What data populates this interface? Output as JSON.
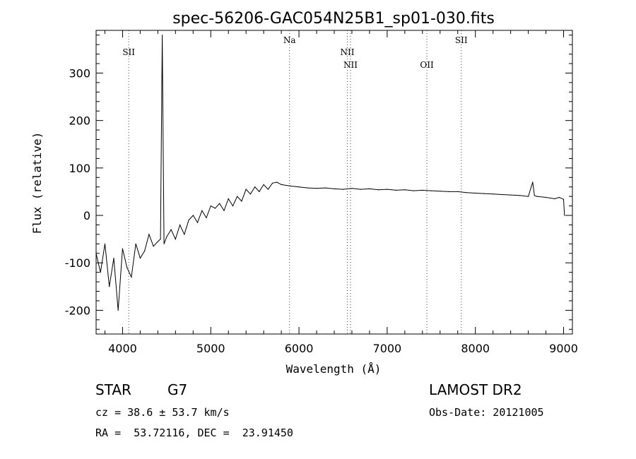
{
  "chart_data": {
    "type": "line",
    "title": "spec-56206-GAC054N25B1_sp01-030.fits",
    "xlabel": "Wavelength (Å)",
    "ylabel": "Flux (relative)",
    "xlim": [
      3700,
      9100
    ],
    "ylim": [
      -250,
      390
    ],
    "x_ticks": [
      4000,
      5000,
      6000,
      7000,
      8000,
      9000
    ],
    "y_ticks": [
      -200,
      -100,
      0,
      100,
      200,
      300
    ],
    "grid": false,
    "spectral_lines": [
      {
        "label": "SII",
        "x": 4070
      },
      {
        "label": "Na",
        "x": 5893
      },
      {
        "label": "NII",
        "x": 6548
      },
      {
        "label": "NII",
        "x": 6584
      },
      {
        "label": "OII",
        "x": 7450
      },
      {
        "label": "SII",
        "x": 7840
      }
    ],
    "series": [
      {
        "x": [
          3700,
          3750,
          3800,
          3850,
          3900,
          3950,
          4000,
          4050,
          4100,
          4150,
          4200,
          4250,
          4300,
          4350,
          4400,
          4430,
          4450,
          4470,
          4500,
          4550,
          4600,
          4650,
          4700,
          4750,
          4800,
          4850,
          4900,
          4950,
          5000,
          5050,
          5100,
          5150,
          5200,
          5250,
          5300,
          5350,
          5400,
          5450,
          5500,
          5550,
          5600,
          5650,
          5700,
          5750,
          5800,
          5900,
          6000,
          6100,
          6200,
          6300,
          6400,
          6500,
          6600,
          6700,
          6800,
          6900,
          7000,
          7100,
          7200,
          7300,
          7400,
          7500,
          7600,
          7700,
          7800,
          7900,
          8000,
          8100,
          8200,
          8300,
          8400,
          8500,
          8600,
          8650,
          8670,
          8700,
          8800,
          8900,
          8950,
          9000,
          9010
        ],
        "values": [
          -80,
          -120,
          -60,
          -150,
          -90,
          -200,
          -70,
          -110,
          -130,
          -60,
          -90,
          -75,
          -40,
          -65,
          -55,
          -50,
          380,
          -60,
          -45,
          -30,
          -50,
          -20,
          -40,
          -10,
          0,
          -15,
          10,
          -5,
          20,
          15,
          25,
          10,
          35,
          20,
          40,
          30,
          55,
          45,
          60,
          50,
          65,
          55,
          68,
          70,
          65,
          62,
          60,
          58,
          57,
          58,
          56,
          55,
          57,
          55,
          56,
          54,
          55,
          53,
          54,
          52,
          53,
          52,
          51,
          50,
          50,
          48,
          47,
          46,
          45,
          44,
          43,
          42,
          40,
          70,
          42,
          40,
          38,
          35,
          38,
          34,
          0
        ]
      }
    ]
  },
  "info": {
    "object_class": "STAR",
    "subclass": "G7",
    "cz": "cz = 38.6 ± 53.7 km/s",
    "coords": "RA =  53.72116, DEC =  23.91450",
    "survey": "LAMOST DR2",
    "obs_date": "Obs-Date: 20121005"
  }
}
